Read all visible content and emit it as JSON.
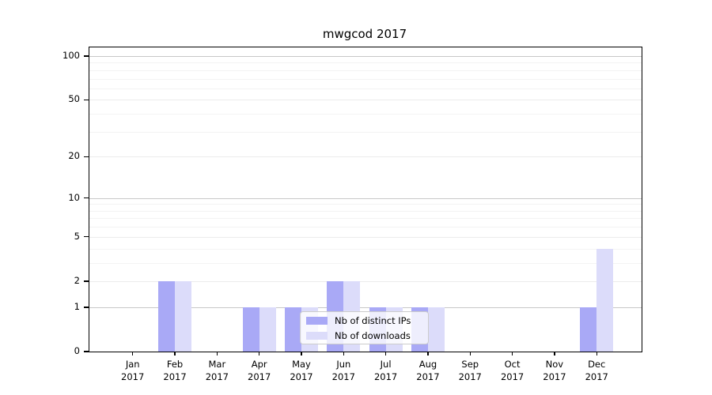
{
  "chart_data": {
    "type": "bar",
    "title": "mwgcod 2017",
    "categories": [
      "Jan",
      "Feb",
      "Mar",
      "Apr",
      "May",
      "Jun",
      "Jul",
      "Aug",
      "Sep",
      "Oct",
      "Nov",
      "Dec"
    ],
    "year_label": "2017",
    "series": [
      {
        "name": "Nb of distinct IPs",
        "color": "#a9a9f6",
        "values": [
          0,
          2,
          0,
          1,
          1,
          2,
          1,
          1,
          0,
          0,
          0,
          1
        ]
      },
      {
        "name": "Nb of downloads",
        "color": "#dcdcfa",
        "values": [
          0,
          2,
          0,
          1,
          1,
          2,
          1,
          1,
          0,
          0,
          0,
          4
        ]
      }
    ],
    "xlabel": "",
    "ylabel": "",
    "yscale": "log1p",
    "ylim": [
      0,
      115
    ],
    "yticks": [
      0,
      1,
      2,
      5,
      10,
      20,
      50,
      100
    ],
    "minor_yticks": [
      3,
      4,
      6,
      7,
      8,
      9,
      30,
      40,
      60,
      70,
      80,
      90
    ],
    "grid": "on",
    "legend_position": "lower center",
    "colors": {
      "axis": "#000000",
      "grid_major": "#c8c8c8",
      "grid_labeled": "#ececec",
      "grid_minor": "#f3f3f3",
      "major_grid_values": [
        1,
        10,
        100
      ]
    }
  }
}
